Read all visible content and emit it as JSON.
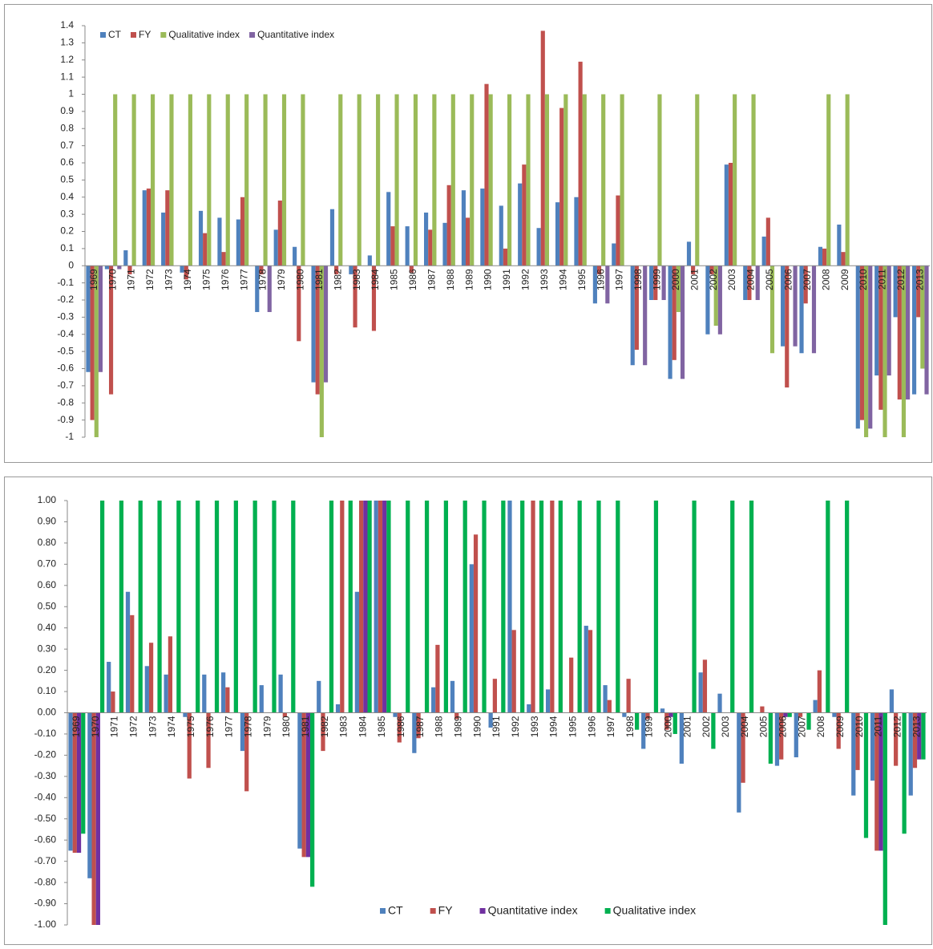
{
  "chart_data": [
    {
      "type": "bar",
      "categories": [
        "1969",
        "1970",
        "1971",
        "1972",
        "1973",
        "1974",
        "1975",
        "1976",
        "1977",
        "1978",
        "1979",
        "1980",
        "1981",
        "1982",
        "1983",
        "1984",
        "1985",
        "1986",
        "1987",
        "1988",
        "1989",
        "1990",
        "1991",
        "1992",
        "1993",
        "1994",
        "1995",
        "1996",
        "1997",
        "1998",
        "1999",
        "2000",
        "2001",
        "2002",
        "2003",
        "2004",
        "2005",
        "2006",
        "2007",
        "2008",
        "2009",
        "2010",
        "2011",
        "2012",
        "2013"
      ],
      "series": [
        {
          "name": "CT",
          "color": "#4f81bd",
          "values": [
            -0.62,
            -0.02,
            0.09,
            0.44,
            0.31,
            -0.04,
            0.32,
            0.28,
            0.27,
            -0.27,
            0.21,
            0.11,
            -0.68,
            0.33,
            -0.05,
            0.06,
            0.43,
            0.23,
            0.31,
            0.25,
            0.44,
            0.45,
            0.35,
            0.48,
            0.22,
            0.37,
            0.4,
            -0.22,
            0.13,
            -0.58,
            -0.2,
            -0.66,
            0.14,
            -0.4,
            0.59,
            -0.2,
            0.17,
            -0.47,
            -0.51,
            0.11,
            0.24,
            -0.95,
            -0.64,
            -0.3,
            -0.75
          ]
        },
        {
          "name": "FY",
          "color": "#c0504d",
          "values": [
            -0.9,
            -0.75,
            -0.05,
            0.45,
            0.44,
            -0.08,
            0.19,
            0.08,
            0.4,
            -0.05,
            0.38,
            -0.44,
            -0.75,
            -0.05,
            -0.36,
            -0.38,
            0.23,
            -0.04,
            0.21,
            0.47,
            0.28,
            1.06,
            0.1,
            0.59,
            1.37,
            0.92,
            1.19,
            -0.05,
            0.41,
            -0.49,
            -0.2,
            -0.55,
            -0.05,
            -0.05,
            0.6,
            -0.2,
            0.28,
            -0.71,
            -0.22,
            0.1,
            0.08,
            -0.9,
            -0.84,
            -0.78,
            -0.3
          ]
        },
        {
          "name": "Qualitative index",
          "color": "#9bbb59",
          "values": [
            -1,
            1,
            1,
            1,
            1,
            1,
            1,
            1,
            1,
            1,
            1,
            1,
            -1,
            1,
            1,
            1,
            1,
            1,
            1,
            1,
            1,
            1,
            1,
            1,
            1,
            1,
            1,
            1,
            1,
            0,
            1,
            -0.27,
            1,
            -0.35,
            1,
            1,
            -0.51,
            0,
            0,
            1,
            1,
            -1,
            -1,
            -1,
            -0.6
          ]
        },
        {
          "name": "Quantitative index",
          "color": "#8064a2",
          "values": [
            -0.62,
            -0.02,
            0,
            0,
            0,
            0,
            0,
            0,
            0,
            -0.27,
            0,
            0,
            -0.68,
            0,
            0,
            0,
            0,
            0,
            0,
            0,
            0,
            0,
            0,
            0,
            0,
            0,
            0,
            -0.22,
            0,
            -0.58,
            -0.2,
            -0.66,
            0,
            -0.4,
            0,
            -0.2,
            0,
            -0.47,
            -0.51,
            0,
            0,
            -0.95,
            -0.64,
            -0.78,
            -0.75
          ]
        }
      ],
      "ylim": [
        -1,
        1.4
      ],
      "yticks": [
        1.4,
        1.3,
        1.2,
        1.1,
        1,
        0.9,
        0.8,
        0.7,
        0.6,
        0.5,
        0.4,
        0.3,
        0.2,
        0.1,
        0,
        -0.1,
        -0.2,
        -0.3,
        -0.4,
        -0.5,
        -0.6,
        -0.7,
        -0.8,
        -0.9,
        -1
      ],
      "legend": "top-left"
    },
    {
      "type": "bar",
      "categories": [
        "1969",
        "1970",
        "1971",
        "1972",
        "1973",
        "1974",
        "1975",
        "1976",
        "1977",
        "1978",
        "1979",
        "1980",
        "1981",
        "1982",
        "1983",
        "1984",
        "1985",
        "1986",
        "1987",
        "1988",
        "1989",
        "1990",
        "1991",
        "1992",
        "1993",
        "1994",
        "1995",
        "1996",
        "1997",
        "1998",
        "1999",
        "2000",
        "2001",
        "2002",
        "2003",
        "2004",
        "2005",
        "2006",
        "2007",
        "2008",
        "2009",
        "2010",
        "2011",
        "2012",
        "2013"
      ],
      "series": [
        {
          "name": "CT",
          "color": "#4f81bd",
          "values": [
            -0.65,
            -0.78,
            0.24,
            0.57,
            0.22,
            0.18,
            -0.02,
            0.18,
            0.19,
            -0.18,
            0.13,
            0.18,
            -0.64,
            0.15,
            0.04,
            0.57,
            1,
            -0.02,
            -0.19,
            0.12,
            0.15,
            0.7,
            -0.07,
            1,
            0.04,
            0.11,
            0,
            0.41,
            0.13,
            -0.02,
            -0.17,
            0.02,
            -0.24,
            0.19,
            0.09,
            -0.47,
            0,
            -0.25,
            -0.21,
            0.06,
            -0.02,
            -0.39,
            -0.32,
            0.11,
            -0.39
          ]
        },
        {
          "name": "FY",
          "color": "#c0504d",
          "values": [
            -0.66,
            -1,
            0.1,
            0.46,
            0.33,
            0.36,
            -0.31,
            -0.26,
            0.12,
            -0.37,
            0,
            -0.02,
            -0.68,
            -0.18,
            1,
            1,
            1,
            -0.14,
            -0.12,
            0.32,
            -0.03,
            0.84,
            0.16,
            0.39,
            1,
            1,
            0.26,
            0.39,
            0.06,
            0.16,
            -0.03,
            -0.08,
            0,
            0.25,
            0,
            -0.33,
            0.03,
            -0.22,
            -0.02,
            0.2,
            -0.17,
            -0.27,
            -0.65,
            -0.25,
            -0.26
          ]
        },
        {
          "name": "Quantitative index",
          "color": "#7030a0",
          "values": [
            -0.66,
            -1,
            0,
            0,
            0,
            0,
            0,
            0,
            0,
            0,
            0,
            0,
            -0.68,
            0,
            0,
            1,
            1,
            0,
            0,
            0,
            0,
            0,
            0,
            0,
            0,
            0,
            0,
            0,
            0,
            0,
            0,
            -0.02,
            0,
            0,
            0,
            0,
            0,
            -0.02,
            0,
            0,
            0,
            0,
            -0.65,
            0,
            -0.22
          ]
        },
        {
          "name": "Qualitative index",
          "color": "#00b050",
          "values": [
            -0.57,
            1,
            1,
            1,
            1,
            1,
            1,
            1,
            1,
            1,
            1,
            1,
            -0.82,
            1,
            1,
            1,
            1,
            1,
            1,
            1,
            1,
            1,
            1,
            1,
            1,
            1,
            1,
            1,
            1,
            -0.08,
            1,
            -0.1,
            1,
            -0.17,
            1,
            1,
            -0.24,
            -0.02,
            -0.08,
            1,
            1,
            -0.59,
            -1,
            -0.57,
            -0.22
          ]
        }
      ],
      "ylim": [
        -1,
        1
      ],
      "yticks": [
        {
          "value": 1,
          "label": "1.00"
        },
        {
          "value": 0.9,
          "label": "0.90"
        },
        {
          "value": 0.8,
          "label": "0.80"
        },
        {
          "value": 0.7,
          "label": "0.70"
        },
        {
          "value": 0.6,
          "label": "0.60"
        },
        {
          "value": 0.5,
          "label": "0.50"
        },
        {
          "value": 0.4,
          "label": "0.40"
        },
        {
          "value": 0.3,
          "label": "0.30"
        },
        {
          "value": 0.2,
          "label": "0.20"
        },
        {
          "value": 0.1,
          "label": "0.10"
        },
        {
          "value": 0,
          "label": "0.00"
        },
        {
          "value": -0.1,
          "label": "-0.10"
        },
        {
          "value": -0.2,
          "label": "-0.20"
        },
        {
          "value": -0.3,
          "label": "-0.30"
        },
        {
          "value": -0.4,
          "label": "-0.40"
        },
        {
          "value": -0.5,
          "label": "-0.50"
        },
        {
          "value": -0.6,
          "label": "-0.60"
        },
        {
          "value": -0.7,
          "label": "-0.70"
        },
        {
          "value": -0.8,
          "label": "-0.80"
        },
        {
          "value": -0.9,
          "label": "-0.90"
        },
        {
          "value": -1,
          "label": "-1.00"
        }
      ],
      "legend": "bottom"
    }
  ]
}
